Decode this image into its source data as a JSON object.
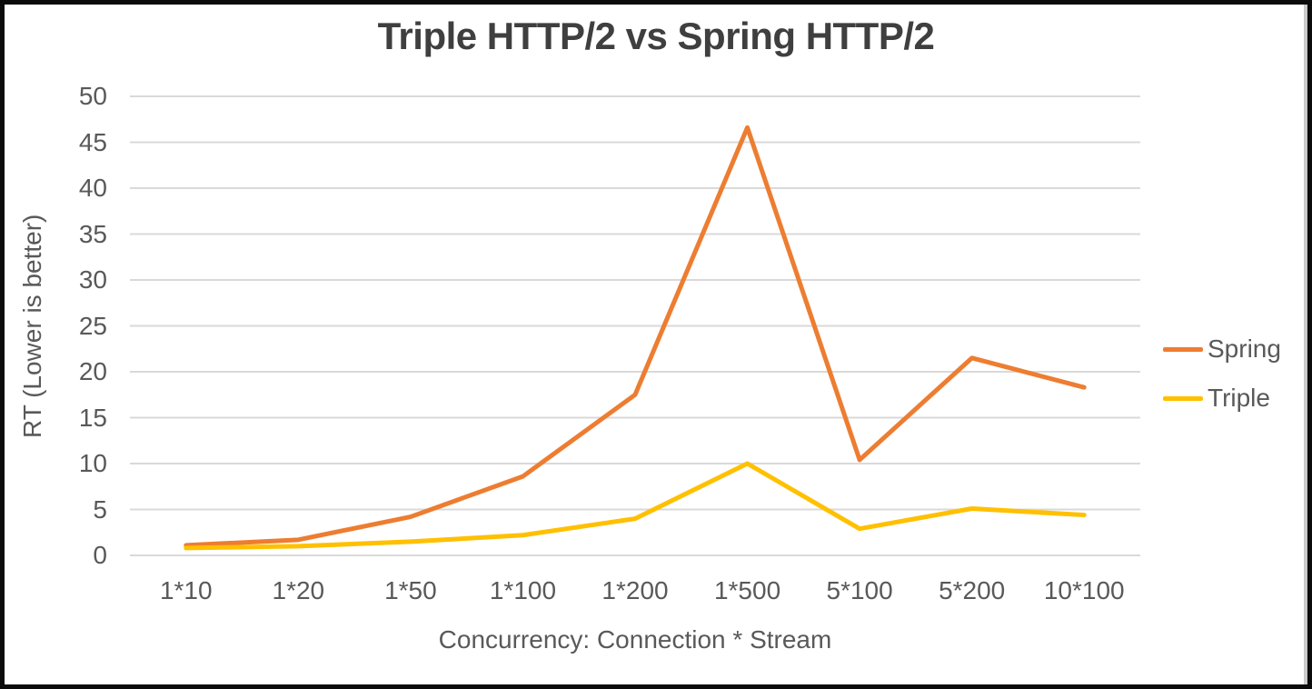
{
  "frame": {
    "background": "#ffffff",
    "border_color": "#0b0b0b"
  },
  "chart_data": {
    "type": "line",
    "title": "Triple HTTP/2 vs Spring HTTP/2",
    "xlabel": "Concurrency: Connection * Stream",
    "ylabel": "RT (Lower is better)",
    "categories": [
      "1*10",
      "1*20",
      "1*50",
      "1*100",
      "1*200",
      "1*500",
      "5*100",
      "5*200",
      "10*100"
    ],
    "series": [
      {
        "name": "Spring",
        "color": "#ED7D31",
        "values": [
          1.1,
          1.7,
          4.2,
          8.6,
          17.5,
          46.6,
          10.4,
          21.5,
          18.3
        ]
      },
      {
        "name": "Triple",
        "color": "#FFC000",
        "values": [
          0.8,
          1.0,
          1.5,
          2.2,
          4.0,
          10.0,
          2.9,
          5.1,
          4.4
        ]
      }
    ],
    "ylim": [
      0,
      50
    ],
    "y_ticks": [
      0,
      5,
      10,
      15,
      20,
      25,
      30,
      35,
      40,
      45,
      50
    ],
    "grid": "horizontal",
    "gridline_color": "#D9D9D9",
    "legend_position": "right",
    "text_color": "#595959",
    "title_color": "#3F3F3F"
  }
}
